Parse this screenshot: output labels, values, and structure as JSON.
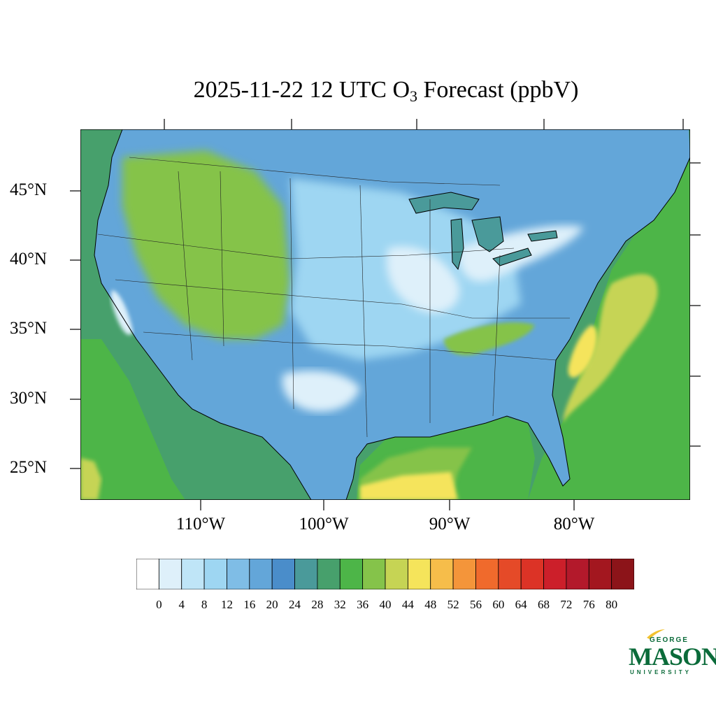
{
  "title": {
    "main": "2025-11-22 12 UTC O",
    "sub": "3",
    "suffix": " Forecast (ppbV)"
  },
  "lat_labels": [
    "45°N",
    "40°N",
    "35°N",
    "30°N",
    "25°N"
  ],
  "lon_labels": [
    "110°W",
    "100°W",
    "90°W",
    "80°W"
  ],
  "colorbar": {
    "labels": [
      "0",
      "4",
      "8",
      "12",
      "16",
      "20",
      "24",
      "28",
      "32",
      "36",
      "40",
      "44",
      "48",
      "52",
      "56",
      "60",
      "64",
      "68",
      "72",
      "76",
      "80"
    ],
    "colors": [
      "#ffffff",
      "#def0fa",
      "#bfe5f7",
      "#9ed6f2",
      "#7fbde6",
      "#63a6d9",
      "#4a8dca",
      "#4a9a9a",
      "#47a06c",
      "#4db548",
      "#85c34a",
      "#c6d454",
      "#f5e45b",
      "#f6bd4a",
      "#f4953a",
      "#f06a2c",
      "#e54a28",
      "#dc3326",
      "#cc1f2a",
      "#b3192b",
      "#a3171f",
      "#8c1419"
    ]
  },
  "logo": {
    "line1": "GEORGE",
    "line2": "MASON",
    "line3": "UNIVERSITY",
    "color": "#0b6b3a"
  },
  "palette": {
    "ocean_base": "#47a06c",
    "ocean_green": "#4db548",
    "land_base": "#63a6d9",
    "light_blue": "#9ed6f2",
    "pale": "#def0fa",
    "teal": "#4a9a9a",
    "yellow_green": "#c6d454",
    "yellow": "#f5e45b",
    "lime": "#85c34a"
  }
}
